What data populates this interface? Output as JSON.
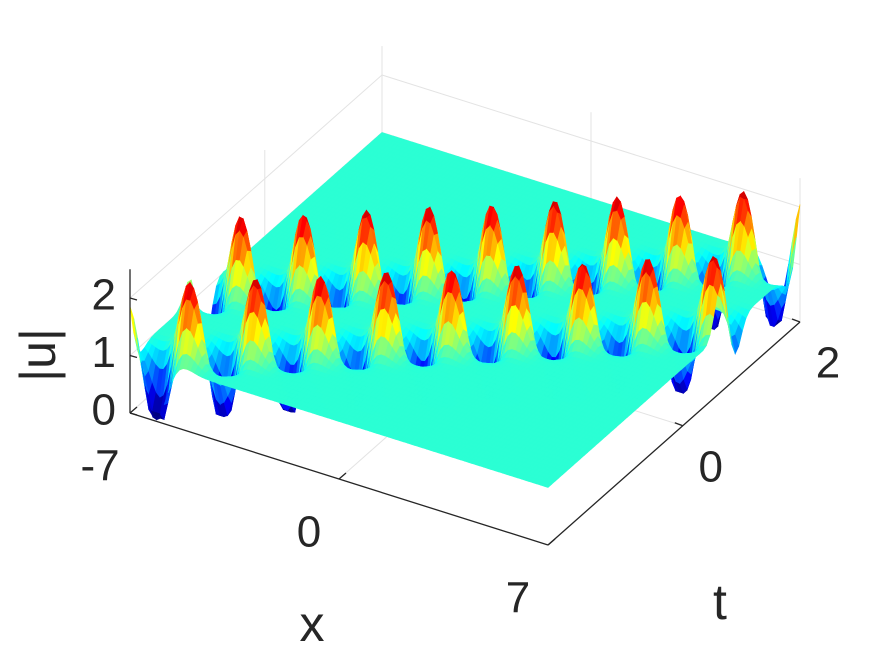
{
  "chart_data": {
    "type": "surface",
    "xlabel": "x",
    "ylabel": "t",
    "zlabel": "|u|",
    "xlim": [
      -7,
      7
    ],
    "ylim": [
      -2.3,
      2
    ],
    "zlim": [
      0,
      2.5
    ],
    "xticks": [
      -7,
      0,
      7
    ],
    "yticks": [
      0,
      2
    ],
    "zticks": [
      0,
      1,
      2
    ],
    "colormap": "jet",
    "grid": true
  }
}
